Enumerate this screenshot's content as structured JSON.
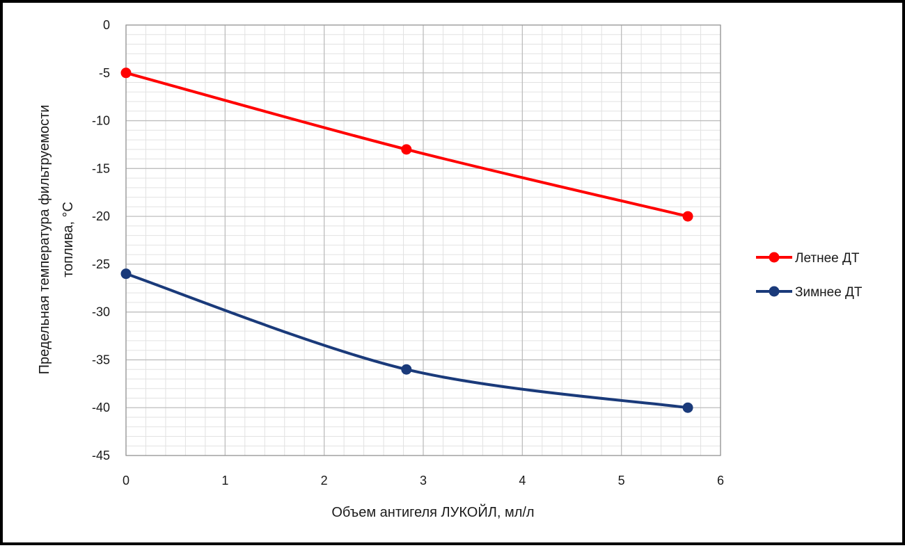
{
  "chart_data": {
    "type": "line",
    "title": "",
    "xlabel": "Объем антигеля ЛУКОЙЛ, мл/л",
    "ylabel_lines": [
      "Предельная температура фильтруемости",
      "топлива, °С"
    ],
    "xlim": [
      0,
      6
    ],
    "ylim": [
      -45,
      0
    ],
    "x_ticks": [
      "0",
      "1",
      "2",
      "3",
      "4",
      "5",
      "6"
    ],
    "y_ticks": [
      "0",
      "-5",
      "-10",
      "-15",
      "-20",
      "-25",
      "-30",
      "-35",
      "-40",
      "-45"
    ],
    "grid": true,
    "smooth": true,
    "legend_position": "right",
    "series": [
      {
        "name": "Летнее ДТ",
        "color": "#ff0000",
        "x": [
          0,
          2.83,
          5.67
        ],
        "y": [
          -5,
          -13,
          -20
        ]
      },
      {
        "name": "Зимнее ДТ",
        "color": "#1a3a7a",
        "x": [
          0,
          2.83,
          5.67
        ],
        "y": [
          -26,
          -36,
          -40
        ]
      }
    ]
  }
}
